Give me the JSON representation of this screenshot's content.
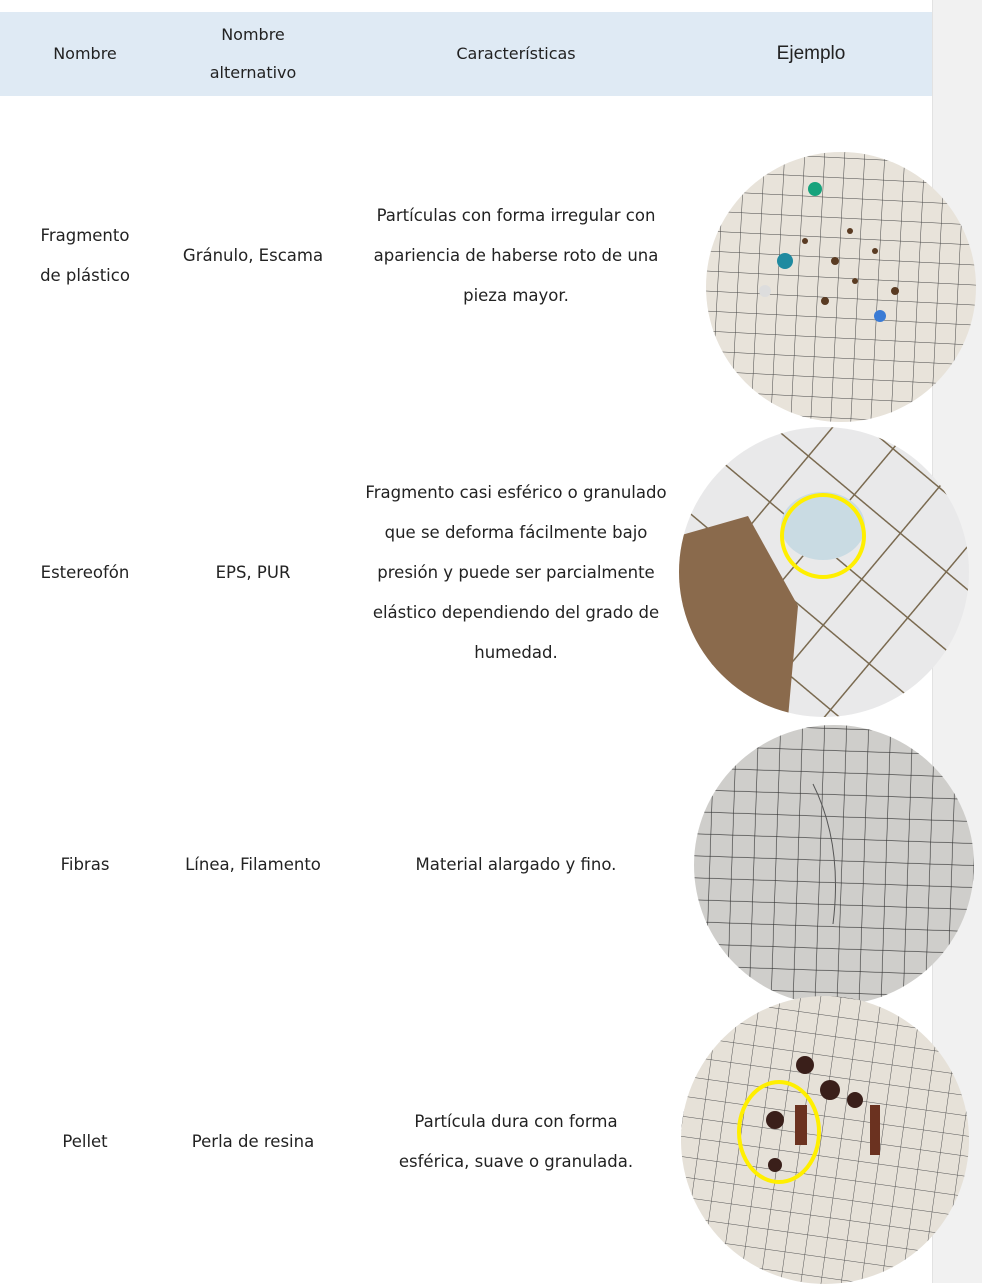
{
  "header": {
    "columns": [
      "Nombre",
      "Nombre alternativo",
      "Características",
      "Ejemplo"
    ]
  },
  "table": {
    "rows": [
      [
        "Fragmento de plástico",
        "Gránulo, Escama",
        "Partículas con forma irregular con apariencia de haberse roto de una pieza mayor."
      ],
      [
        "Estereofón",
        "EPS, PUR",
        "Fragmento casi esférico o granulado que se deforma fácilmente bajo presión y puede ser parcialmente elástico dependiendo del grado de humedad."
      ],
      [
        "Fibras",
        "Línea, Filamento",
        "Material alargado y fino."
      ],
      [
        "Pellet",
        "Perla de resina",
        "Partícula dura con forma esférica, suave o granulada."
      ]
    ]
  }
}
